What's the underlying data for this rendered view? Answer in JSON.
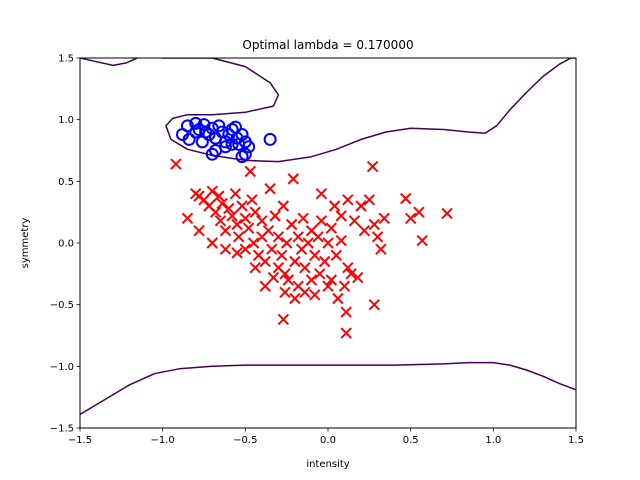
{
  "chart_data": {
    "type": "scatter",
    "title": "Optimal lambda = 0.170000",
    "xlabel": "intensity",
    "ylabel": "symmetry",
    "xlim": [
      -1.5,
      1.5
    ],
    "ylim": [
      -1.5,
      1.5
    ],
    "xticks": [
      -1.5,
      -1.0,
      -0.5,
      0.0,
      0.5,
      1.0,
      1.5
    ],
    "yticks": [
      -1.5,
      -1.0,
      -0.5,
      0.0,
      0.5,
      1.0,
      1.5
    ],
    "xtick_labels": [
      "−1.5",
      "−1.0",
      "−0.5",
      "0.0",
      "0.5",
      "1.0",
      "1.5"
    ],
    "ytick_labels": [
      "−1.5",
      "−1.0",
      "−0.5",
      "0.0",
      "0.5",
      "1.0",
      "1.5"
    ],
    "grid": false,
    "series": [
      {
        "marker": "circle-open",
        "color": "#0000ff",
        "points": [
          [
            -0.85,
            0.95
          ],
          [
            -0.8,
            0.97
          ],
          [
            -0.78,
            0.92
          ],
          [
            -0.75,
            0.96
          ],
          [
            -0.72,
            0.88
          ],
          [
            -0.7,
            0.93
          ],
          [
            -0.68,
            0.85
          ],
          [
            -0.66,
            0.95
          ],
          [
            -0.64,
            0.9
          ],
          [
            -0.62,
            0.82
          ],
          [
            -0.6,
            0.88
          ],
          [
            -0.58,
            0.92
          ],
          [
            -0.56,
            0.94
          ],
          [
            -0.55,
            0.85
          ],
          [
            -0.54,
            0.8
          ],
          [
            -0.52,
            0.88
          ],
          [
            -0.5,
            0.82
          ],
          [
            -0.5,
            0.72
          ],
          [
            -0.48,
            0.78
          ],
          [
            -0.88,
            0.88
          ],
          [
            -0.84,
            0.84
          ],
          [
            -0.76,
            0.82
          ],
          [
            -0.7,
            0.72
          ],
          [
            -0.68,
            0.75
          ],
          [
            -0.62,
            0.78
          ],
          [
            -0.58,
            0.8
          ],
          [
            -0.52,
            0.7
          ],
          [
            -0.35,
            0.84
          ],
          [
            -0.8,
            0.9
          ],
          [
            -0.74,
            0.9
          ]
        ]
      },
      {
        "marker": "x",
        "color": "#ff0000",
        "points": [
          [
            -0.92,
            0.64
          ],
          [
            -0.8,
            0.4
          ],
          [
            -0.78,
            0.38
          ],
          [
            -0.75,
            0.35
          ],
          [
            -0.72,
            0.3
          ],
          [
            -0.7,
            0.42
          ],
          [
            -0.68,
            0.25
          ],
          [
            -0.66,
            0.38
          ],
          [
            -0.65,
            0.18
          ],
          [
            -0.64,
            0.32
          ],
          [
            -0.62,
            0.1
          ],
          [
            -0.6,
            0.28
          ],
          [
            -0.58,
            0.22
          ],
          [
            -0.56,
            0.4
          ],
          [
            -0.55,
            0.15
          ],
          [
            -0.54,
            0.05
          ],
          [
            -0.52,
            0.3
          ],
          [
            -0.5,
            0.2
          ],
          [
            -0.5,
            -0.05
          ],
          [
            -0.48,
            0.12
          ],
          [
            -0.47,
            0.58
          ],
          [
            -0.46,
            0.35
          ],
          [
            -0.45,
            0.0
          ],
          [
            -0.44,
            0.25
          ],
          [
            -0.42,
            -0.1
          ],
          [
            -0.4,
            0.18
          ],
          [
            -0.4,
            0.05
          ],
          [
            -0.38,
            -0.15
          ],
          [
            -0.36,
            0.1
          ],
          [
            -0.35,
            0.44
          ],
          [
            -0.34,
            -0.05
          ],
          [
            -0.32,
            0.22
          ],
          [
            -0.3,
            -0.2
          ],
          [
            -0.3,
            0.05
          ],
          [
            -0.28,
            -0.1
          ],
          [
            -0.27,
            0.3
          ],
          [
            -0.26,
            -0.25
          ],
          [
            -0.25,
            0.0
          ],
          [
            -0.24,
            -0.3
          ],
          [
            -0.22,
            0.15
          ],
          [
            -0.21,
            0.52
          ],
          [
            -0.2,
            -0.15
          ],
          [
            -0.18,
            0.05
          ],
          [
            -0.18,
            -0.35
          ],
          [
            -0.16,
            -0.05
          ],
          [
            -0.15,
            0.2
          ],
          [
            -0.14,
            -0.2
          ],
          [
            -0.12,
            0.0
          ],
          [
            -0.1,
            -0.3
          ],
          [
            -0.08,
            -0.1
          ],
          [
            -0.06,
            0.05
          ],
          [
            -0.05,
            -0.25
          ],
          [
            -0.04,
            0.4
          ],
          [
            -0.02,
            -0.15
          ],
          [
            0.0,
            0.0
          ],
          [
            0.02,
            -0.3
          ],
          [
            0.04,
            0.3
          ],
          [
            0.05,
            -0.1
          ],
          [
            0.08,
            0.22
          ],
          [
            0.1,
            -0.35
          ],
          [
            0.12,
            0.35
          ],
          [
            0.14,
            -0.25
          ],
          [
            0.16,
            0.18
          ],
          [
            0.2,
            0.3
          ],
          [
            0.22,
            0.1
          ],
          [
            0.25,
            0.35
          ],
          [
            0.27,
            0.62
          ],
          [
            0.28,
            0.15
          ],
          [
            0.3,
            0.05
          ],
          [
            0.32,
            -0.05
          ],
          [
            0.34,
            0.2
          ],
          [
            0.47,
            0.36
          ],
          [
            0.5,
            0.2
          ],
          [
            0.55,
            0.25
          ],
          [
            0.57,
            0.02
          ],
          [
            0.72,
            0.24
          ],
          [
            0.11,
            -0.73
          ],
          [
            0.28,
            -0.5
          ],
          [
            0.11,
            -0.56
          ],
          [
            -0.27,
            -0.62
          ],
          [
            -0.85,
            0.2
          ],
          [
            -0.78,
            0.1
          ],
          [
            -0.7,
            0.0
          ],
          [
            -0.62,
            -0.05
          ],
          [
            -0.55,
            -0.08
          ],
          [
            -0.44,
            -0.2
          ],
          [
            -0.38,
            -0.35
          ],
          [
            -0.33,
            -0.28
          ],
          [
            -0.26,
            -0.4
          ],
          [
            -0.2,
            -0.45
          ],
          [
            -0.14,
            -0.4
          ],
          [
            -0.08,
            -0.42
          ],
          [
            0.0,
            -0.35
          ],
          [
            0.06,
            -0.45
          ],
          [
            0.12,
            -0.2
          ],
          [
            0.18,
            -0.28
          ],
          [
            -0.1,
            0.1
          ],
          [
            -0.04,
            0.18
          ],
          [
            0.02,
            0.12
          ],
          [
            0.08,
            0.02
          ]
        ]
      }
    ],
    "contours": [
      {
        "color": "#440154",
        "points": [
          [
            -1.5,
            1.5
          ],
          [
            -1.4,
            1.47
          ],
          [
            -1.3,
            1.44
          ],
          [
            -1.22,
            1.46
          ],
          [
            -1.12,
            1.52
          ],
          [
            -1.0,
            1.5
          ],
          [
            -0.9,
            1.5
          ],
          [
            -0.7,
            1.5
          ],
          [
            -0.5,
            1.43
          ],
          [
            -0.35,
            1.3
          ],
          [
            -0.3,
            1.2
          ],
          [
            -0.33,
            1.11
          ],
          [
            -0.5,
            1.06
          ],
          [
            -0.7,
            1.04
          ],
          [
            -0.85,
            1.04
          ],
          [
            -0.94,
            1.01
          ],
          [
            -0.98,
            0.95
          ],
          [
            -0.95,
            0.84
          ],
          [
            -0.85,
            0.76
          ],
          [
            -0.7,
            0.71
          ],
          [
            -0.5,
            0.67
          ],
          [
            -0.3,
            0.66
          ],
          [
            -0.1,
            0.7
          ],
          [
            0.05,
            0.76
          ],
          [
            0.2,
            0.84
          ],
          [
            0.35,
            0.9
          ],
          [
            0.5,
            0.93
          ],
          [
            0.7,
            0.92
          ],
          [
            0.85,
            0.9
          ],
          [
            0.95,
            0.89
          ],
          [
            1.02,
            0.95
          ],
          [
            1.1,
            1.08
          ],
          [
            1.2,
            1.22
          ],
          [
            1.3,
            1.35
          ],
          [
            1.4,
            1.45
          ],
          [
            1.47,
            1.5
          ],
          [
            1.5,
            1.5
          ]
        ]
      },
      {
        "color": "#440154",
        "points": [
          [
            -1.5,
            -1.39
          ],
          [
            -1.35,
            -1.27
          ],
          [
            -1.2,
            -1.15
          ],
          [
            -1.05,
            -1.06
          ],
          [
            -0.9,
            -1.02
          ],
          [
            -0.7,
            -1.0
          ],
          [
            -0.5,
            -0.99
          ],
          [
            -0.2,
            -0.99
          ],
          [
            0.1,
            -0.99
          ],
          [
            0.4,
            -0.99
          ],
          [
            0.7,
            -0.98
          ],
          [
            0.85,
            -0.97
          ],
          [
            1.0,
            -0.97
          ],
          [
            1.1,
            -0.99
          ],
          [
            1.2,
            -1.03
          ],
          [
            1.3,
            -1.08
          ],
          [
            1.4,
            -1.14
          ],
          [
            1.5,
            -1.19
          ]
        ]
      }
    ]
  }
}
